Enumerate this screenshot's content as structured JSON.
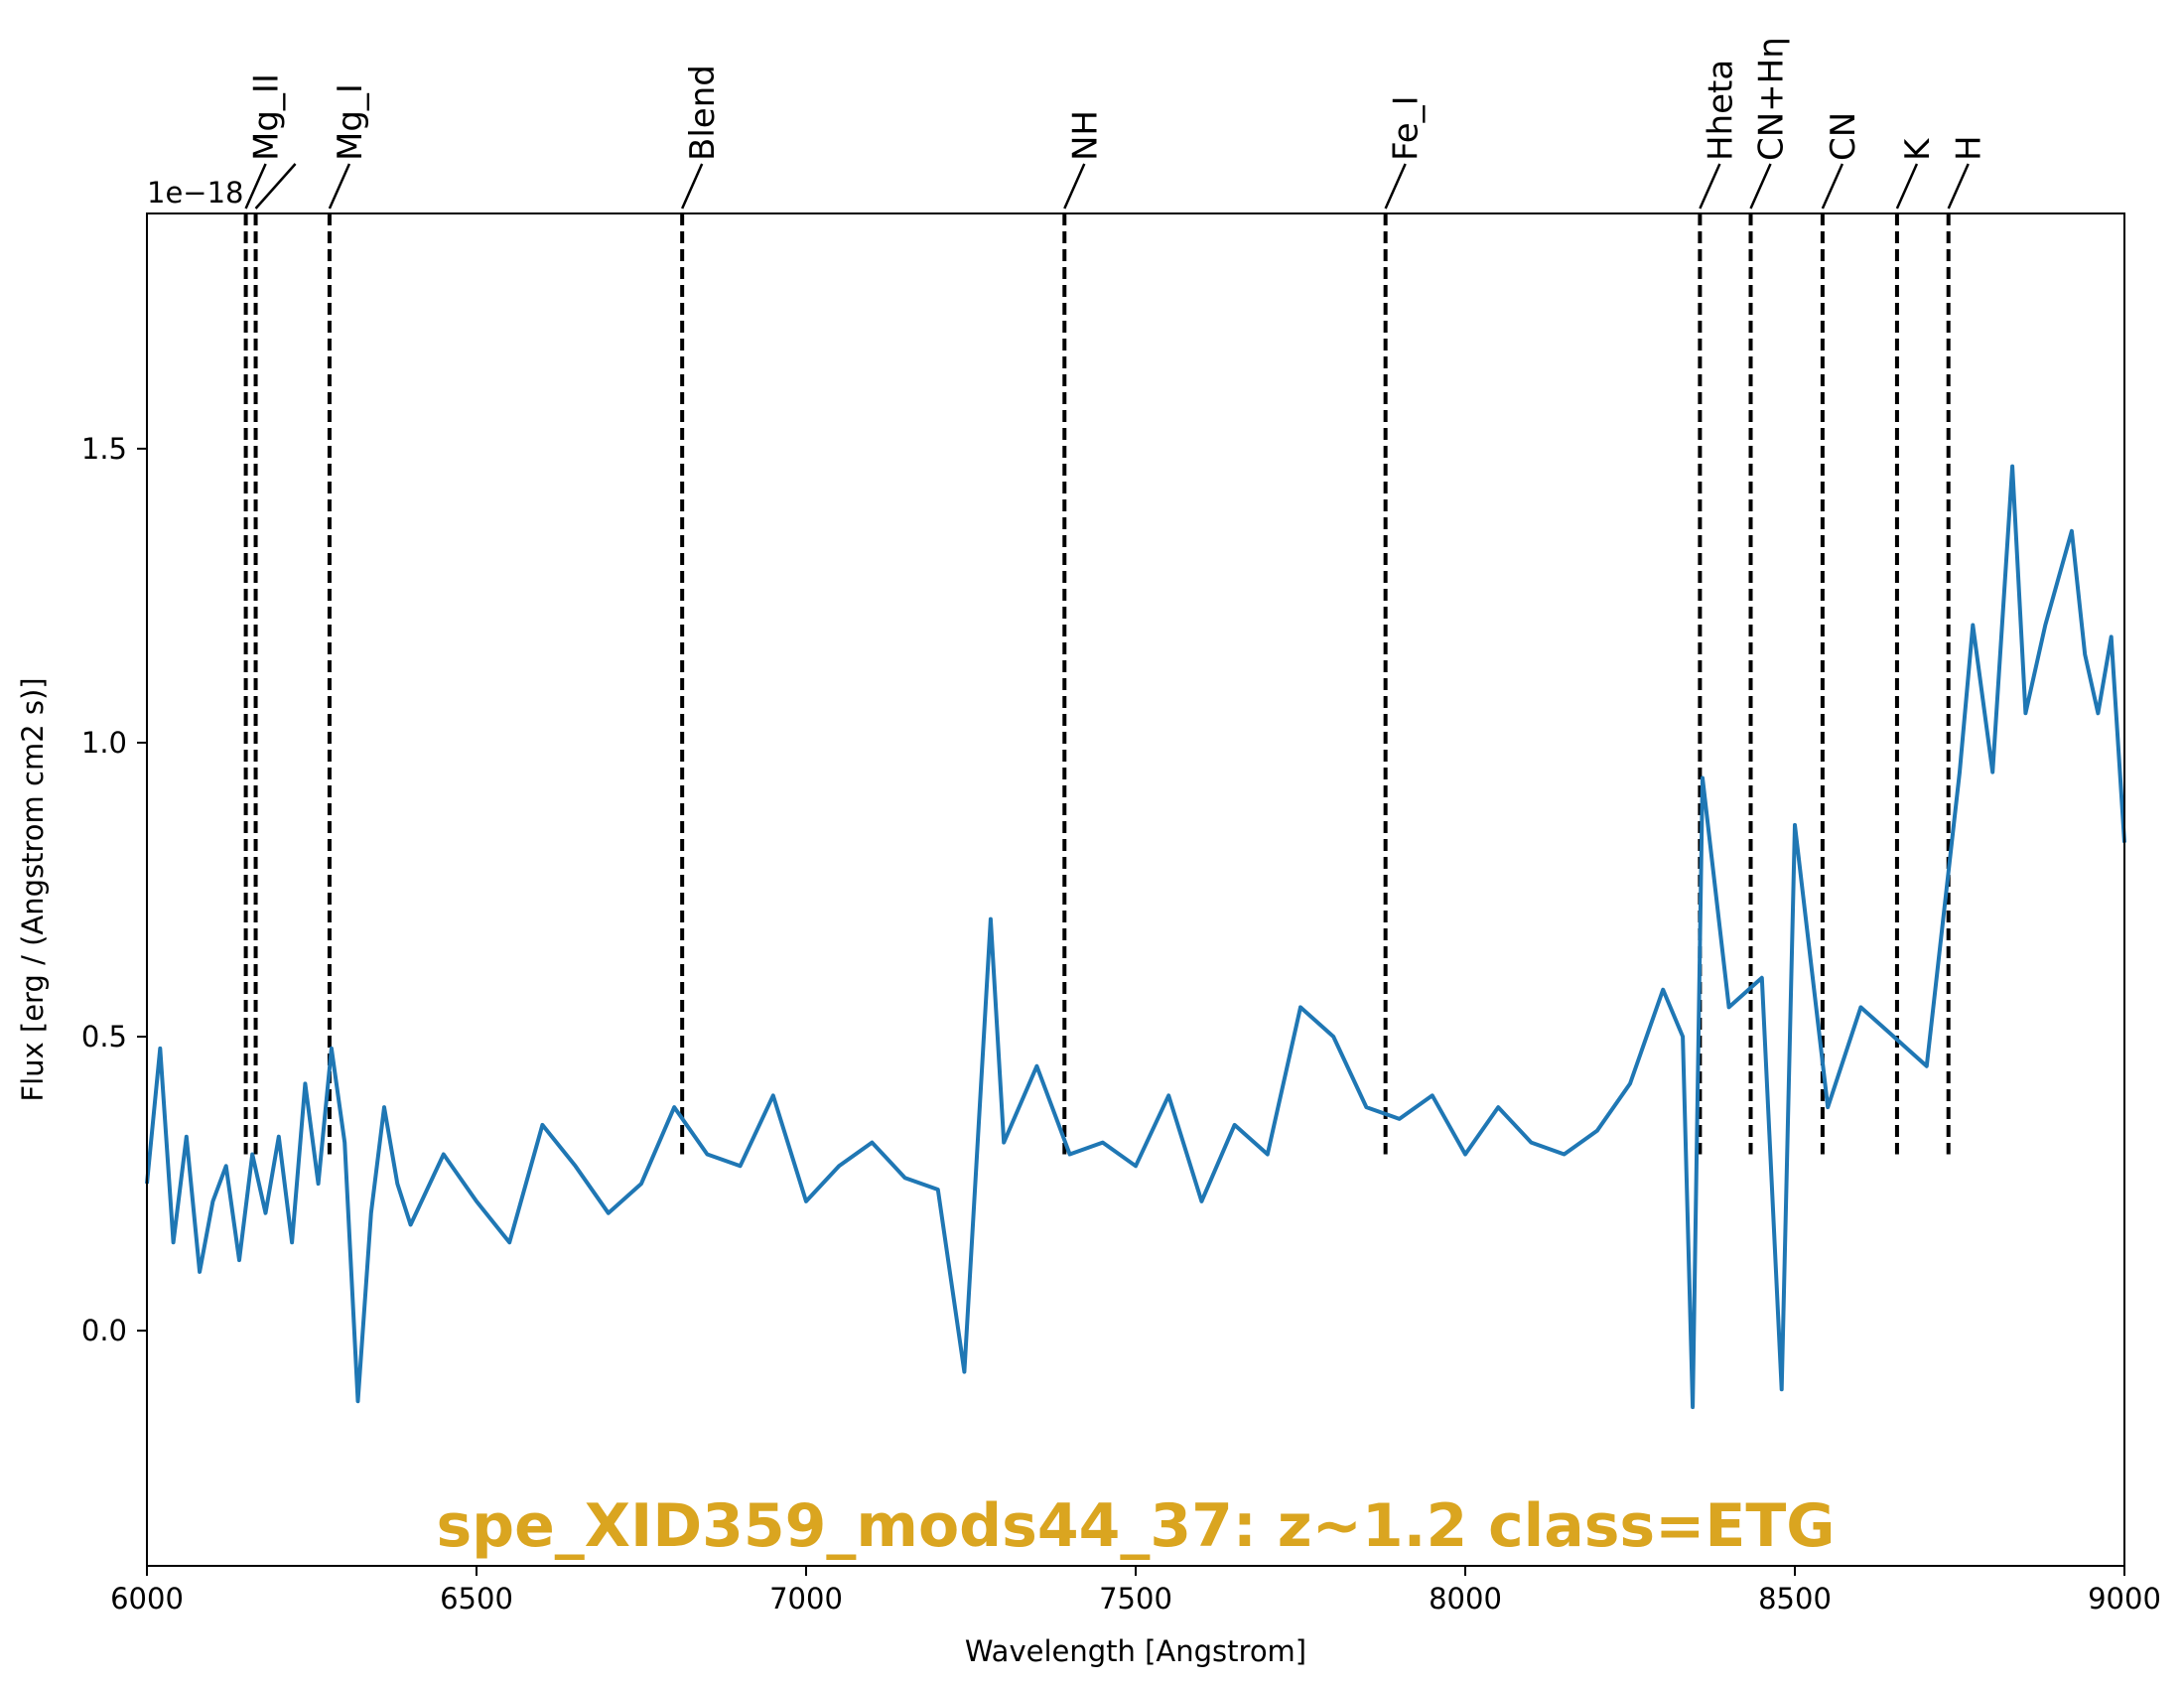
{
  "chart_data": {
    "type": "line",
    "title": "spe_XID359_mods44_37: z~1.2 class=ETG",
    "title_color": "#DAA520",
    "xlabel": "Wavelength [Angstrom]",
    "ylabel": "Flux [erg / (Angstrom cm2 s)]",
    "y_offset_label": "1e−18",
    "xlim": [
      6000,
      9000
    ],
    "ylim": [
      -0.4,
      1.9
    ],
    "x_ticks": [
      6000,
      6500,
      7000,
      7500,
      8000,
      8500,
      9000
    ],
    "x_tick_labels": [
      "6000",
      "6500",
      "7000",
      "7500",
      "8000",
      "8500",
      "9000"
    ],
    "y_ticks": [
      0.0,
      0.5,
      1.0,
      1.5
    ],
    "y_tick_labels": [
      "0.0",
      "0.5",
      "1.0",
      "1.5"
    ],
    "grid": false,
    "series": [
      {
        "color": "#1f77b4",
        "x": [
          6000,
          6020,
          6040,
          6060,
          6080,
          6100,
          6120,
          6140,
          6160,
          6180,
          6200,
          6220,
          6240,
          6260,
          6280,
          6300,
          6320,
          6340,
          6360,
          6380,
          6400,
          6450,
          6500,
          6550,
          6600,
          6650,
          6700,
          6750,
          6800,
          6850,
          6900,
          6950,
          7000,
          7050,
          7100,
          7150,
          7200,
          7240,
          7280,
          7300,
          7350,
          7400,
          7450,
          7500,
          7550,
          7600,
          7650,
          7700,
          7750,
          7800,
          7850,
          7900,
          7950,
          8000,
          8050,
          8100,
          8150,
          8200,
          8250,
          8300,
          8330,
          8345,
          8360,
          8400,
          8450,
          8480,
          8500,
          8550,
          8600,
          8650,
          8700,
          8750,
          8770,
          8800,
          8830,
          8850,
          8880,
          8900,
          8920,
          8940,
          8960,
          8980,
          9000
        ],
        "values": [
          0.25,
          0.48,
          0.15,
          0.33,
          0.1,
          0.22,
          0.28,
          0.12,
          0.3,
          0.2,
          0.33,
          0.15,
          0.42,
          0.25,
          0.48,
          0.32,
          -0.12,
          0.2,
          0.38,
          0.25,
          0.18,
          0.3,
          0.22,
          0.15,
          0.35,
          0.28,
          0.2,
          0.25,
          0.38,
          0.3,
          0.28,
          0.4,
          0.22,
          0.28,
          0.32,
          0.26,
          0.24,
          -0.07,
          0.7,
          0.32,
          0.45,
          0.3,
          0.32,
          0.28,
          0.4,
          0.22,
          0.35,
          0.3,
          0.55,
          0.5,
          0.38,
          0.36,
          0.4,
          0.3,
          0.38,
          0.32,
          0.3,
          0.34,
          0.42,
          0.58,
          0.5,
          -0.13,
          0.94,
          0.55,
          0.6,
          -0.1,
          0.86,
          0.38,
          0.55,
          0.5,
          0.45,
          0.95,
          1.2,
          0.95,
          1.47,
          1.05,
          1.2,
          1.28,
          1.36,
          1.15,
          1.05,
          1.18,
          0.83
        ]
      }
    ],
    "markers": [
      {
        "name": "Mg_II",
        "x": 6150
      },
      {
        "name": "",
        "x": 6165
      },
      {
        "name": "Mg_I",
        "x": 6277
      },
      {
        "name": "Blend",
        "x": 6812
      },
      {
        "name": "NH",
        "x": 7392
      },
      {
        "name": "Fe_I",
        "x": 7879
      },
      {
        "name": "Hheta",
        "x": 8356
      },
      {
        "name": "CN+Hη",
        "x": 8433
      },
      {
        "name": "CN",
        "x": 8542
      },
      {
        "name": "K",
        "x": 8655
      },
      {
        "name": "H",
        "x": 8733
      }
    ]
  }
}
